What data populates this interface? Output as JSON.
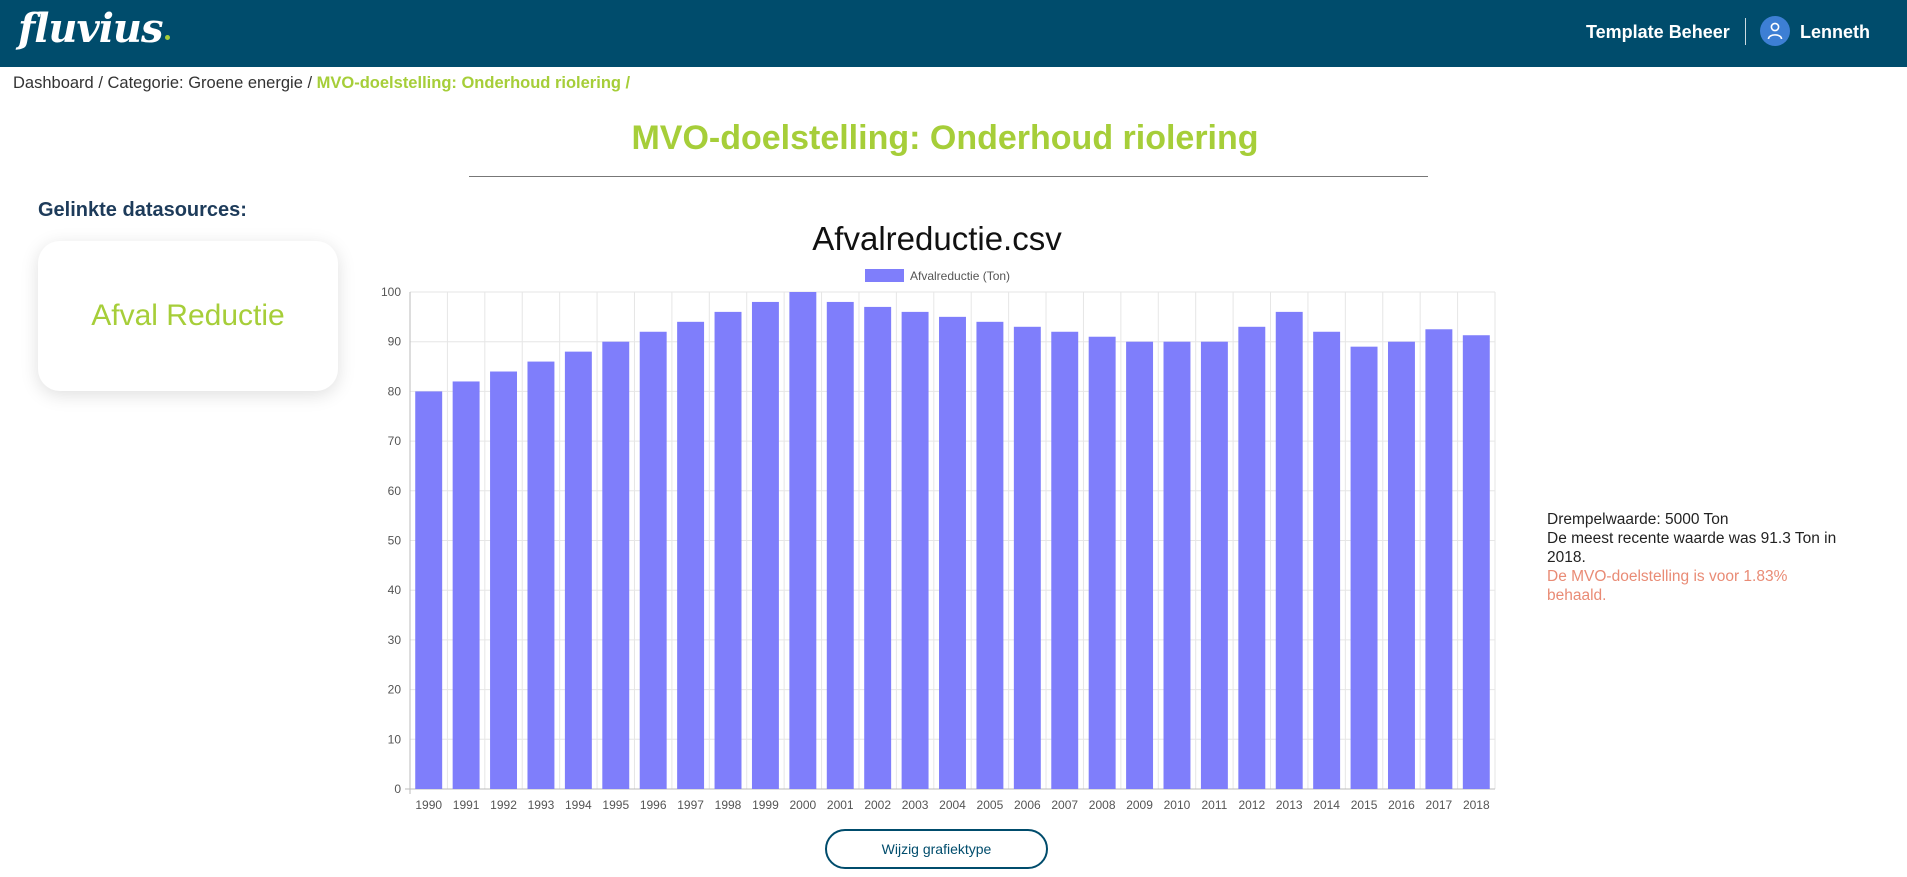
{
  "app": {
    "logo_text": "fluvius"
  },
  "nav": {
    "template_label": "Template Beheer",
    "user_name": "Lenneth"
  },
  "breadcrumb": {
    "items": [
      "Dashboard",
      "Categorie: Groene energie"
    ],
    "separator": " / ",
    "current": "MVO-doelstelling: Onderhoud riolering /"
  },
  "page": {
    "title": "MVO-doelstelling: Onderhoud riolering"
  },
  "datasources": {
    "heading": "Gelinkte datasources:",
    "card_label": "Afval Reductie"
  },
  "info": {
    "threshold": "Drempelwaarde: 5000 Ton",
    "recent": "De meest recente waarde was 91.3 Ton in 2018.",
    "status": "De MVO-doelstelling is voor 1.83% behaald."
  },
  "actions": {
    "change_chart_label": "Wijzig grafiektype"
  },
  "colors": {
    "brand_dark": "#004c6c",
    "brand_green": "#a6ce39",
    "bar": "#7f7efb",
    "warn": "#e98b75"
  },
  "chart_data": {
    "type": "bar",
    "title": "Afvalreductie.csv",
    "legend_position": "top",
    "grid": true,
    "categories": [
      "1990",
      "1991",
      "1992",
      "1993",
      "1994",
      "1995",
      "1996",
      "1997",
      "1998",
      "1999",
      "2000",
      "2001",
      "2002",
      "2003",
      "2004",
      "2005",
      "2006",
      "2007",
      "2008",
      "2009",
      "2010",
      "2011",
      "2012",
      "2013",
      "2014",
      "2015",
      "2016",
      "2017",
      "2018"
    ],
    "series": [
      {
        "name": "Afvalreductie (Ton)",
        "values": [
          80,
          82,
          84,
          86,
          88,
          90,
          92,
          94,
          96,
          98,
          100,
          98,
          97,
          96,
          95,
          94,
          93,
          92,
          91,
          90,
          90,
          90,
          93,
          96,
          92,
          89,
          90,
          92.5,
          91.3
        ]
      }
    ],
    "ylim": [
      0,
      100
    ],
    "yticks": [
      0,
      10,
      20,
      30,
      40,
      50,
      60,
      70,
      80,
      90,
      100
    ]
  }
}
